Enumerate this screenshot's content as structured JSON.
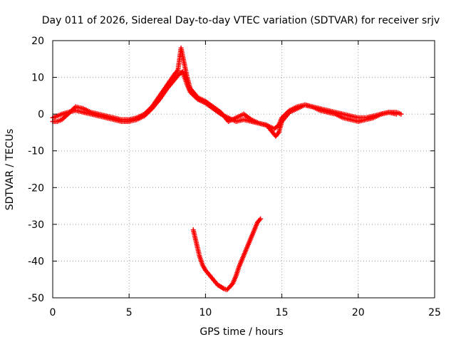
{
  "chart_data": {
    "type": "scatter",
    "title": "Day 011 of 2026, Sidereal Day-to-day VTEC variation (SDTVAR) for receiver srjv",
    "xlabel": "GPS time / hours",
    "ylabel": "SDTVAR / TECUs",
    "xlim": [
      0,
      25
    ],
    "ylim": [
      -50,
      20
    ],
    "xticks": [
      0,
      5,
      10,
      15,
      20,
      25
    ],
    "yticks": [
      -50,
      -40,
      -30,
      -20,
      -10,
      0,
      10,
      20
    ],
    "xtick_labels": [
      "0",
      "5",
      "10",
      "15",
      "20",
      "25"
    ],
    "ytick_labels": [
      "-50",
      "-40",
      "-30",
      "-20",
      "-10",
      "0",
      "10",
      "20"
    ],
    "grid": true,
    "marker": "plus",
    "color": "#ff0000",
    "series": [
      {
        "name": "main track A",
        "x": [
          0.0,
          0.3,
          0.6,
          1.0,
          1.5,
          2.0,
          2.5,
          3.0,
          3.5,
          4.0,
          4.5,
          5.0,
          5.5,
          6.0,
          6.5,
          7.0,
          7.5,
          8.0,
          8.3,
          8.5,
          8.8,
          9.0,
          9.5,
          10.0,
          10.5,
          11.0,
          11.5,
          12.0,
          12.5,
          13.0,
          13.5,
          14.0,
          14.5,
          14.8,
          15.0,
          15.5,
          16.0,
          16.5,
          17.0,
          17.5,
          18.0,
          18.5,
          19.0,
          19.5,
          20.0,
          20.5,
          21.0,
          21.5,
          22.0,
          22.5,
          22.8
        ],
        "y": [
          -1.0,
          -0.5,
          0.0,
          0.5,
          1.0,
          0.5,
          0.0,
          -0.5,
          -1.0,
          -1.5,
          -2.0,
          -2.0,
          -1.5,
          -0.5,
          1.5,
          4.0,
          7.0,
          9.5,
          11.0,
          11.5,
          8.0,
          6.0,
          4.0,
          3.0,
          1.5,
          0.0,
          -1.0,
          -2.0,
          -1.5,
          -2.0,
          -2.5,
          -3.0,
          -4.0,
          -3.0,
          -1.0,
          1.0,
          2.0,
          2.5,
          2.0,
          1.5,
          1.0,
          0.5,
          0.0,
          -0.5,
          -1.0,
          -1.0,
          -0.5,
          0.0,
          0.5,
          0.5,
          0.0
        ]
      },
      {
        "name": "main track B",
        "x": [
          0.0,
          0.3,
          0.6,
          1.0,
          1.5,
          2.0,
          2.5,
          3.0,
          3.5,
          4.0,
          4.5,
          5.0,
          5.5,
          6.0,
          6.5,
          7.0,
          7.5,
          8.0,
          8.2,
          8.4,
          8.6,
          8.8,
          9.0,
          9.5,
          10.0,
          10.5,
          11.0,
          11.5,
          12.0,
          12.5,
          13.0,
          13.5,
          14.0,
          14.3,
          14.6,
          14.8,
          15.0,
          15.5,
          16.0,
          16.5,
          17.0,
          17.5,
          18.0,
          18.5,
          19.0,
          19.5,
          20.0,
          20.5,
          21.0,
          21.5,
          22.0,
          22.5
        ],
        "y": [
          -2.0,
          -2.0,
          -1.5,
          0.0,
          2.0,
          1.5,
          0.5,
          0.0,
          -0.5,
          -1.0,
          -1.5,
          -1.5,
          -1.0,
          0.0,
          2.0,
          5.0,
          8.0,
          11.0,
          12.0,
          18.0,
          14.0,
          10.0,
          7.0,
          4.5,
          3.5,
          2.0,
          0.5,
          -2.0,
          -1.0,
          0.0,
          -1.5,
          -2.5,
          -3.0,
          -4.5,
          -6.0,
          -5.0,
          -2.0,
          0.5,
          1.5,
          2.5,
          2.0,
          1.0,
          0.5,
          0.0,
          -1.0,
          -1.5,
          -2.0,
          -1.5,
          -1.0,
          0.0,
          0.5,
          0.0
        ]
      },
      {
        "name": "lower arc",
        "x": [
          9.2,
          9.4,
          9.6,
          9.8,
          10.0,
          10.2,
          10.4,
          10.6,
          10.8,
          11.0,
          11.2,
          11.4,
          11.6,
          11.8,
          12.0,
          12.2,
          12.4,
          12.6,
          12.8,
          13.0,
          13.2,
          13.4,
          13.6
        ],
        "y": [
          -31.5,
          -35.0,
          -38.5,
          -41.0,
          -42.5,
          -43.5,
          -44.5,
          -45.5,
          -46.5,
          -47.0,
          -47.5,
          -47.8,
          -47.0,
          -46.0,
          -44.0,
          -41.5,
          -39.5,
          -37.5,
          -35.5,
          -33.5,
          -31.5,
          -29.5,
          -28.5
        ]
      }
    ]
  }
}
